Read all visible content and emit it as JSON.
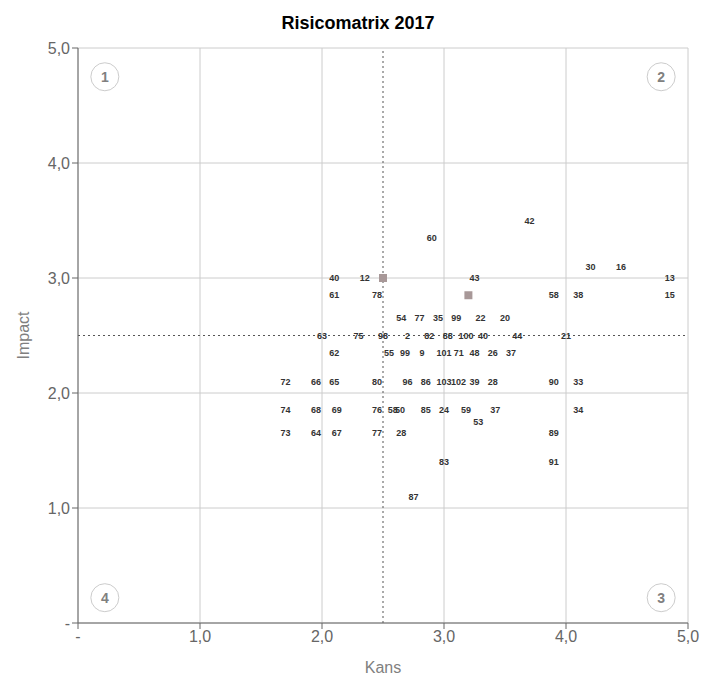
{
  "chart_data": {
    "type": "scatter",
    "title": "Risicomatrix 2017",
    "x_label": "Kans",
    "y_label": "Impact",
    "xlim": [
      0,
      5
    ],
    "ylim": [
      0,
      5
    ],
    "xticks": [
      {
        "value": 0,
        "label": "-"
      },
      {
        "value": 1,
        "label": "1,0"
      },
      {
        "value": 2,
        "label": "2,0"
      },
      {
        "value": 3,
        "label": "3,0"
      },
      {
        "value": 4,
        "label": "4,0"
      },
      {
        "value": 5,
        "label": "5,0"
      }
    ],
    "yticks": [
      {
        "value": 0,
        "label": "-"
      },
      {
        "value": 1,
        "label": "1,0"
      },
      {
        "value": 2,
        "label": "2,0"
      },
      {
        "value": 3,
        "label": "3,0"
      },
      {
        "value": 4,
        "label": "4,0"
      },
      {
        "value": 5,
        "label": "5,0"
      }
    ],
    "grid": true,
    "dividers": {
      "x": 2.5,
      "y": 2.5,
      "line_style": "dotted"
    },
    "series": [
      {
        "marker": "square",
        "color": "#a89898",
        "x": [
          2.5,
          3.2
        ],
        "values": [
          3.0,
          2.85
        ]
      },
      {
        "marker": "text",
        "x": [
          3.7,
          2.9,
          4.2,
          4.45,
          4.85,
          3.25,
          4.85,
          2.1,
          2.35,
          2.1,
          2.45,
          3.9,
          4.1,
          2.65,
          2.8,
          2.95,
          3.1,
          3.3,
          3.5,
          2.0,
          2.3,
          2.5,
          2.7,
          2.88,
          3.03,
          3.18,
          3.32,
          3.6,
          4.0,
          2.1,
          2.55,
          2.68,
          2.82,
          3.0,
          3.12,
          3.25,
          3.4,
          3.55,
          1.7,
          1.95,
          2.1,
          2.45,
          2.7,
          2.85,
          3.0,
          3.12,
          3.25,
          3.4,
          3.9,
          4.1,
          1.7,
          1.95,
          2.12,
          2.45,
          2.58,
          2.64,
          2.85,
          3.0,
          3.18,
          3.28,
          3.42,
          4.1,
          1.7,
          1.95,
          2.12,
          2.45,
          2.65,
          3.9,
          3.0,
          3.9,
          2.75
        ],
        "values": [
          3.5,
          3.35,
          3.1,
          3.1,
          3.0,
          3.0,
          2.85,
          3.0,
          3.0,
          2.85,
          2.85,
          2.85,
          2.85,
          2.65,
          2.65,
          2.65,
          2.65,
          2.65,
          2.65,
          2.5,
          2.5,
          2.5,
          2.5,
          2.5,
          2.5,
          2.5,
          2.5,
          2.5,
          2.5,
          2.35,
          2.35,
          2.35,
          2.35,
          2.35,
          2.35,
          2.35,
          2.35,
          2.35,
          2.1,
          2.1,
          2.1,
          2.1,
          2.1,
          2.1,
          2.1,
          2.1,
          2.1,
          2.1,
          2.1,
          2.1,
          1.85,
          1.85,
          1.85,
          1.85,
          1.85,
          1.85,
          1.85,
          1.85,
          1.85,
          1.75,
          1.85,
          1.85,
          1.65,
          1.65,
          1.65,
          1.65,
          1.65,
          1.65,
          1.4,
          1.4,
          1.1
        ],
        "point_labels": [
          "42",
          "60",
          "30",
          "16",
          "13",
          "43",
          "15",
          "40",
          "12",
          "61",
          "78",
          "58",
          "38",
          "54",
          "77",
          "35",
          "99",
          "22",
          "20",
          "63",
          "75",
          "98",
          "2",
          "82",
          "88",
          "100",
          "40",
          "44",
          "21",
          "62",
          "55",
          "99",
          "9",
          "101",
          "71",
          "48",
          "26",
          "37",
          "72",
          "66",
          "65",
          "80",
          "96",
          "86",
          "103",
          "102",
          "39",
          "28",
          "90",
          "33",
          "74",
          "68",
          "69",
          "76",
          "58",
          "50",
          "85",
          "24",
          "59",
          "53",
          "37",
          "34",
          "73",
          "64",
          "67",
          "77",
          "28",
          "89",
          "83",
          "91",
          "87"
        ]
      }
    ],
    "annotations": [
      {
        "text": "1",
        "x": 0.22,
        "y": 4.75
      },
      {
        "text": "2",
        "x": 4.78,
        "y": 4.75
      },
      {
        "text": "3",
        "x": 4.78,
        "y": 0.22
      },
      {
        "text": "4",
        "x": 0.22,
        "y": 0.22
      }
    ]
  }
}
